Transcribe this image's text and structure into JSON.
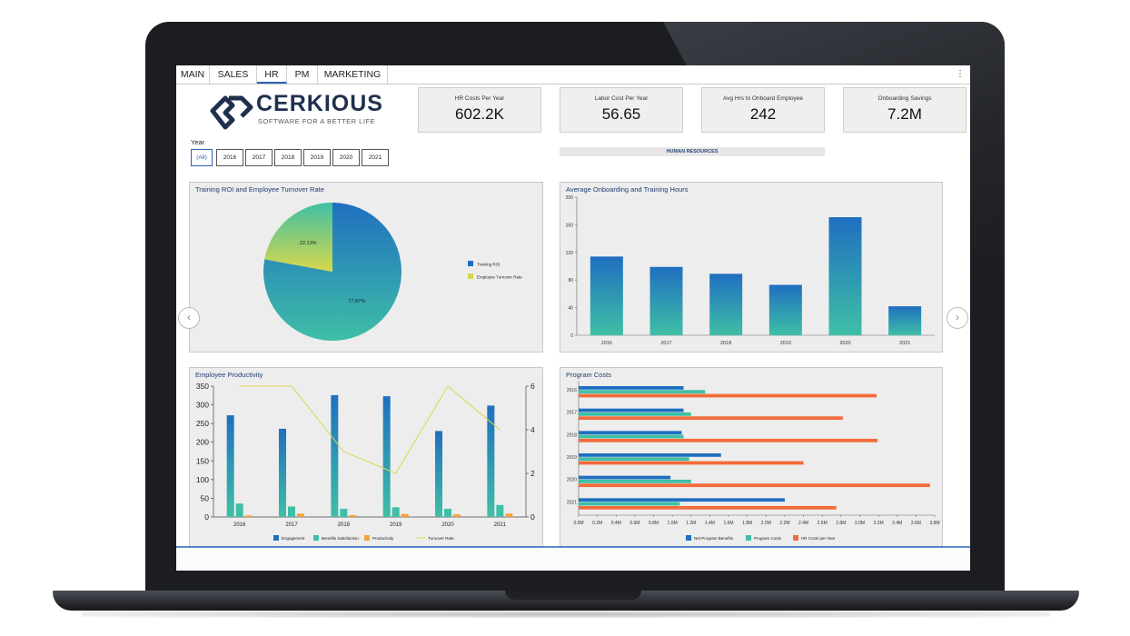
{
  "tabs": [
    {
      "label": "MAIN"
    },
    {
      "label": "SALES"
    },
    {
      "label": "HR"
    },
    {
      "label": "PM"
    },
    {
      "label": "MARKETING"
    }
  ],
  "active_tab": "HR",
  "menu_glyph": "⋮",
  "logo": {
    "name": "CERKIOUS",
    "tagline": "SOFTWARE FOR A BETTER LIFE"
  },
  "kpis": [
    {
      "label": "HR Costs Per Year",
      "value": "602.2K"
    },
    {
      "label": "Labor Cost Per Year",
      "value": "56.65"
    },
    {
      "label": "Avg Hrs to Onboard Employee",
      "value": "242"
    },
    {
      "label": "Onboarding Savings",
      "value": "7.2M"
    }
  ],
  "year_filter": {
    "label": "Year",
    "options": [
      "(All)",
      "2016",
      "2017",
      "2018",
      "2019",
      "2020",
      "2021"
    ],
    "selected": "(All)"
  },
  "section_banner": "HUMAN RESOURCES",
  "nav": {
    "prev": "‹",
    "next": "›"
  },
  "colors": {
    "blue": "#1f6fc0",
    "teal": "#3fbfa6",
    "orange": "#f26b3a",
    "light_orange": "#f7a23b",
    "yellow_green": "#d8d84a",
    "panel_bg": "#ededed",
    "accent": "#2b63b7"
  },
  "chart_data": [
    {
      "id": "training-roi",
      "type": "pie",
      "title": "Training ROI and Employee Turnover Rate",
      "slices": [
        {
          "name": "Training ROI",
          "value": 77.87,
          "label": "77.87%"
        },
        {
          "name": "Employee Turnover Rate",
          "value": 22.13,
          "label": "22.13%"
        }
      ],
      "legend": "right"
    },
    {
      "id": "onboarding-hours",
      "type": "bar",
      "title": "Average Onboarding and Training Hours",
      "categories": [
        "2016",
        "2017",
        "2018",
        "2019",
        "2020",
        "2021"
      ],
      "values": [
        114,
        99,
        89,
        73,
        171,
        42
      ],
      "ylim": [
        0,
        200
      ],
      "yticks": [
        "0",
        "40",
        "80",
        "120",
        "160",
        "200"
      ]
    },
    {
      "id": "employee-productivity",
      "type": "bar",
      "title": "Employee Productivity",
      "categories": [
        "2016",
        "2017",
        "2018",
        "2019",
        "2020",
        "2021"
      ],
      "series": [
        {
          "name": "Engagement",
          "values": [
            272,
            236,
            326,
            323,
            230,
            298
          ]
        },
        {
          "name": "Benefits Satisfaction",
          "values": [
            36,
            28,
            22,
            26,
            22,
            32
          ]
        },
        {
          "name": "Productivity",
          "values": [
            4,
            9,
            5,
            8,
            7,
            9
          ]
        },
        {
          "name": "Turnover Rate",
          "type": "line",
          "axis": "right",
          "values": [
            6,
            6,
            3,
            2,
            6,
            4
          ]
        }
      ],
      "ylim": [
        0,
        350
      ],
      "yticks": [
        "0",
        "50",
        "100",
        "150",
        "200",
        "250",
        "300",
        "350"
      ],
      "y2lim": [
        0,
        6
      ],
      "y2ticks": [
        "0",
        "2",
        "4",
        "6"
      ],
      "legend": "bottom"
    },
    {
      "id": "program-costs",
      "type": "bar",
      "orientation": "horizontal",
      "title": "Program Costs",
      "categories": [
        "2016",
        "2017",
        "2018",
        "2019",
        "2020",
        "2021"
      ],
      "series": [
        {
          "name": "Net Program Benefits",
          "values": [
            1.12,
            1.12,
            1.1,
            1.52,
            0.98,
            2.2
          ]
        },
        {
          "name": "Program Costs",
          "values": [
            1.35,
            1.2,
            1.12,
            1.18,
            1.2,
            1.08
          ]
        },
        {
          "name": "HR Costs per Year",
          "values": [
            3.18,
            2.82,
            3.19,
            2.4,
            3.75,
            2.75
          ]
        }
      ],
      "xlim": [
        0,
        3.8
      ],
      "xticks": [
        "0.0M",
        "0.2M",
        "0.4M",
        "0.6M",
        "0.8M",
        "1.0M",
        "1.2M",
        "1.4M",
        "1.6M",
        "1.8M",
        "2.0M",
        "2.2M",
        "2.4M",
        "2.6M",
        "2.8M",
        "3.0M",
        "3.2M",
        "3.4M",
        "3.6M",
        "3.8M"
      ],
      "legend": "bottom"
    }
  ]
}
